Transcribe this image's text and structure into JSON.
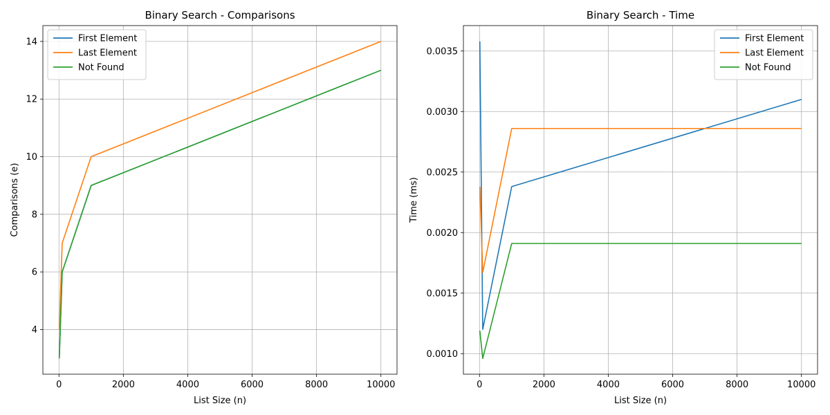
{
  "chart_data": [
    {
      "type": "line",
      "title": "Binary Search - Comparisons",
      "xlabel": "List Size (n)",
      "ylabel": "Comparisons (e)",
      "xlim": [
        -500,
        10500
      ],
      "ylim": [
        2.45,
        14.55
      ],
      "xticks": [
        0,
        2000,
        4000,
        6000,
        8000,
        10000
      ],
      "yticks": [
        4,
        6,
        8,
        10,
        12,
        14
      ],
      "x": [
        10,
        100,
        1000,
        10000
      ],
      "grid": true,
      "legend_position": "top-left",
      "series": [
        {
          "name": "First Element",
          "color": "#1f77b4",
          "values": [
            3,
            6,
            9,
            13
          ]
        },
        {
          "name": "Last Element",
          "color": "#ff7f0e",
          "values": [
            4,
            7,
            10,
            14
          ]
        },
        {
          "name": "Not Found",
          "color": "#2ca02c",
          "values": [
            3,
            6,
            9,
            13
          ]
        }
      ]
    },
    {
      "type": "line",
      "title": "Binary Search - Time",
      "xlabel": "List Size (n)",
      "ylabel": "Time (ms)",
      "xlim": [
        -500,
        10500
      ],
      "ylim": [
        0.00083,
        0.00371
      ],
      "xticks": [
        0,
        2000,
        4000,
        6000,
        8000,
        10000
      ],
      "yticks": [
        0.001,
        0.0015,
        0.002,
        0.0025,
        0.003,
        0.0035
      ],
      "ytick_decimals": 4,
      "x": [
        10,
        100,
        1000,
        10000
      ],
      "grid": true,
      "legend_position": "top-right",
      "series": [
        {
          "name": "First Element",
          "color": "#1f77b4",
          "values": [
            0.00358,
            0.0012,
            0.00238,
            0.0031
          ]
        },
        {
          "name": "Last Element",
          "color": "#ff7f0e",
          "values": [
            0.00238,
            0.00167,
            0.00286,
            0.00286
          ]
        },
        {
          "name": "Not Found",
          "color": "#2ca02c",
          "values": [
            0.00119,
            0.00096,
            0.00191,
            0.00191
          ]
        }
      ]
    }
  ]
}
